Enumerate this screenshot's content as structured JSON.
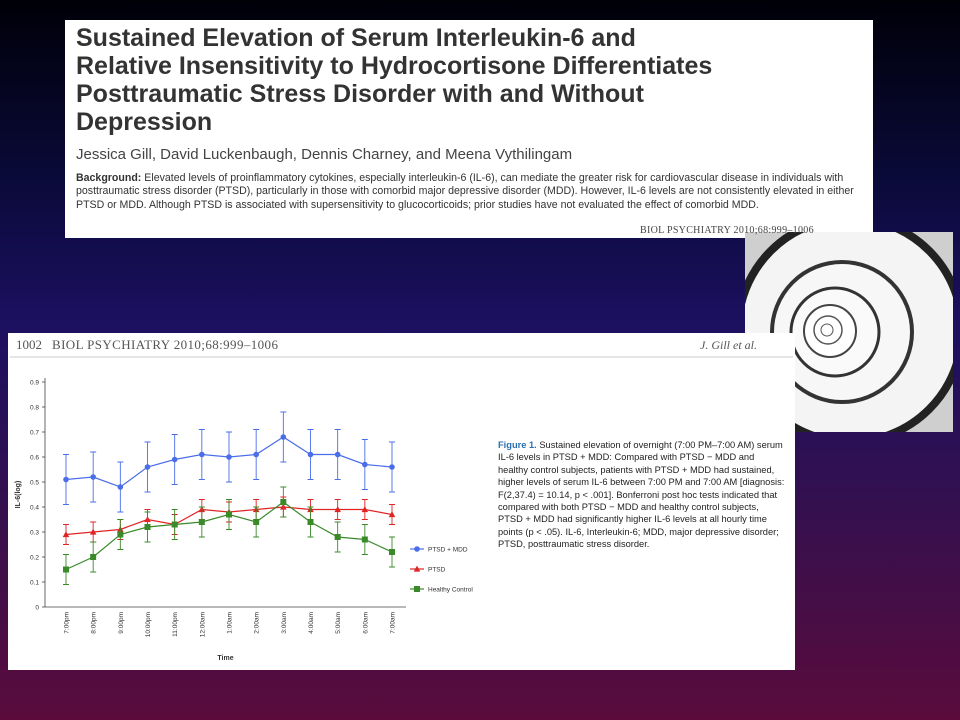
{
  "article": {
    "title_lines": [
      "Sustained Elevation of Serum Interleukin-6 and",
      "Relative Insensitivity to Hydrocortisone Differentiates",
      "Posttraumatic Stress Disorder with and Without",
      "Depression"
    ],
    "authors": "Jessica Gill, David Luckenbaugh, Dennis Charney, and Meena Vythilingam",
    "background_label": "Background:",
    "background": "Elevated levels of proinflammatory cytokines, especially interleukin-6 (IL-6), can mediate the greater risk for cardiovascular disease in individuals with posttraumatic stress disorder (PTSD), particularly in those with comorbid major depressive disorder (MDD). However, IL-6 levels are not consistently elevated in either PTSD or MDD. Although PTSD is associated with supersensitivity to glucocorticoids; prior studies have not evaluated the effect of comorbid MDD.",
    "citation": "BIOL PSYCHIATRY 2010;68:999–1006"
  },
  "figure_page": {
    "page_number": "1002",
    "journal": "BIOL PSYCHIATRY 2010;68:999–1006",
    "author": "J. Gill et al.",
    "caption_label": "Figure 1.",
    "caption": "Sustained elevation of overnight (7:00 PM–7:00 AM) serum IL-6 levels in PTSD + MDD: Compared with PTSD − MDD and healthy control subjects, patients with PTSD + MDD had sustained, higher levels of serum IL-6 between 7:00 PM and 7:00 AM [diagnosis: F(2,37.4) = 10.14, p < .001]. Bonferroni post hoc tests indicated that compared with both PTSD − MDD and healthy control subjects, PTSD + MDD had significantly higher IL-6 levels at all hourly time points (p < .05). IL-6, Interleukin-6; MDD, major depressive disorder; PTSD, posttraumatic stress disorder."
  },
  "chart_data": {
    "type": "line",
    "x_label": "Time",
    "y_label": "IL-6(log)",
    "categories": [
      "7:00pm",
      "8:00pm",
      "9:00pm",
      "10:00pm",
      "11:00pm",
      "12:00am",
      "1:00am",
      "2:00am",
      "3:00am",
      "4:00am",
      "5:00am",
      "6:00am",
      "7:00am"
    ],
    "ylim": [
      0,
      0.9
    ],
    "yticks": [
      0,
      0.1,
      0.2,
      0.3,
      0.4,
      0.5,
      0.6,
      0.7,
      0.8,
      0.9
    ],
    "series": [
      {
        "name": "PTSD + MDD",
        "color": "#4a6ee8",
        "marker": "circle",
        "values": [
          0.51,
          0.52,
          0.48,
          0.56,
          0.59,
          0.61,
          0.6,
          0.61,
          0.68,
          0.61,
          0.61,
          0.57,
          0.56
        ],
        "errors": [
          0.1,
          0.1,
          0.1,
          0.1,
          0.1,
          0.1,
          0.1,
          0.1,
          0.1,
          0.1,
          0.1,
          0.1,
          0.1
        ]
      },
      {
        "name": "PTSD",
        "color": "#e02424",
        "marker": "triangle",
        "values": [
          0.29,
          0.3,
          0.31,
          0.35,
          0.33,
          0.39,
          0.38,
          0.39,
          0.4,
          0.39,
          0.39,
          0.39,
          0.37
        ],
        "errors": [
          0.04,
          0.04,
          0.04,
          0.04,
          0.04,
          0.04,
          0.04,
          0.04,
          0.04,
          0.04,
          0.04,
          0.04,
          0.04
        ]
      },
      {
        "name": "Healthy Control",
        "color": "#3a8a2a",
        "marker": "square",
        "values": [
          0.15,
          0.2,
          0.29,
          0.32,
          0.33,
          0.34,
          0.37,
          0.34,
          0.42,
          0.34,
          0.28,
          0.27,
          0.22
        ],
        "errors": [
          0.06,
          0.06,
          0.06,
          0.06,
          0.06,
          0.06,
          0.06,
          0.06,
          0.06,
          0.06,
          0.06,
          0.06,
          0.06
        ]
      }
    ]
  }
}
